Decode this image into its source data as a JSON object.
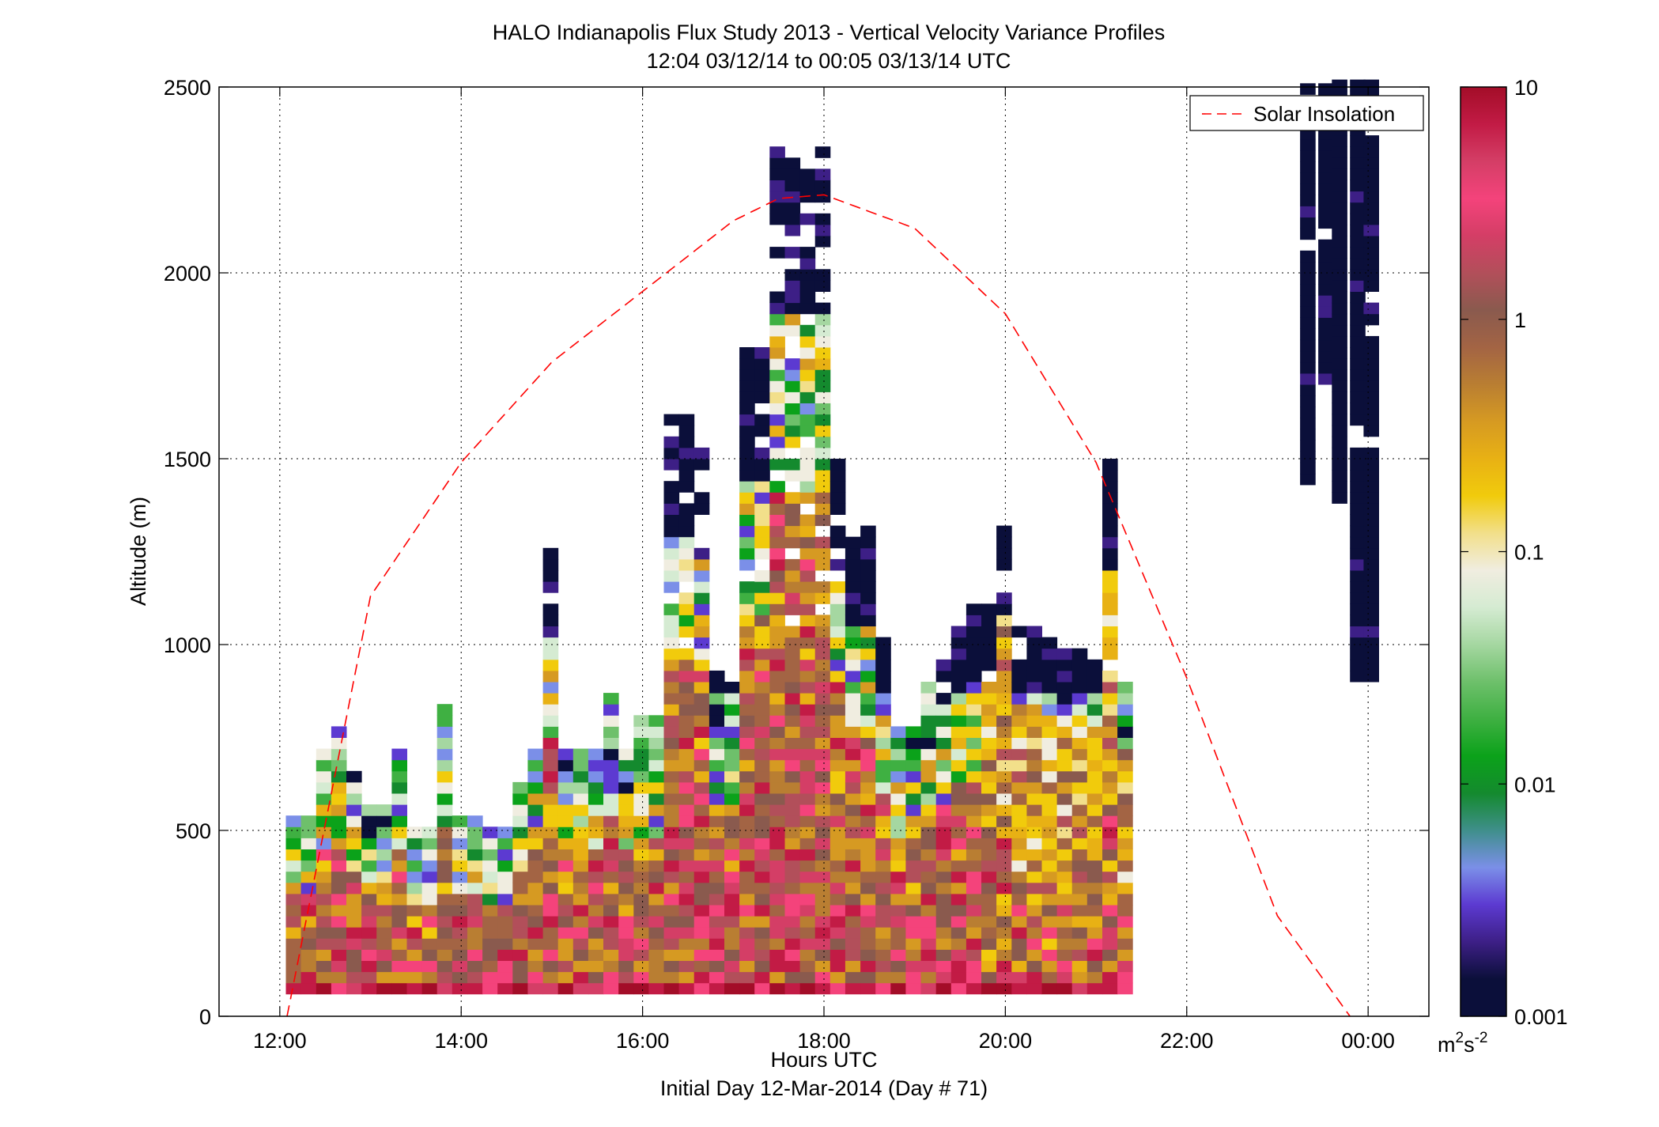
{
  "chart_data": {
    "type": "heatmap",
    "title_line1": "HALO Indianapolis Flux Study 2013 - Vertical Velocity Variance Profiles",
    "title_line2": "12:04 03/12/14 to 00:05 03/13/14  UTC",
    "xlabel": "Hours UTC",
    "xlabel2": "Initial Day 12-Mar-2014 (Day # 71)",
    "ylabel": "Altitude (m)",
    "xlim": [
      11.33,
      24.67
    ],
    "ylim": [
      0,
      2500
    ],
    "x_ticks": [
      12,
      14,
      16,
      18,
      20,
      22,
      24
    ],
    "x_tick_labels": [
      "12:00",
      "14:00",
      "16:00",
      "18:00",
      "20:00",
      "22:00",
      "00:00"
    ],
    "y_ticks": [
      0,
      500,
      1000,
      1500,
      2000,
      2500
    ],
    "y_tick_labels": [
      "0",
      "500",
      "1000",
      "1500",
      "2000",
      "2500"
    ],
    "grid": true,
    "legend": {
      "entries": [
        "Solar Insolation"
      ],
      "placement": "top-right",
      "line_color": "#ff0000",
      "line_style": "dashed"
    },
    "colorbar": {
      "scale": "log",
      "range": [
        0.001,
        10
      ],
      "ticks": [
        0.001,
        0.01,
        0.1,
        1,
        10
      ],
      "tick_labels": [
        "0.001",
        "0.01",
        "0.1",
        "1",
        "10"
      ],
      "unit_label": "m",
      "unit_sup1": "2",
      "unit_mid": "s",
      "unit_sup2": "-2"
    },
    "palette": [
      "#0b0f3a",
      "#3d1f86",
      "#5c3ad1",
      "#7b8fe8",
      "#3f8f8b",
      "#148a2e",
      "#0ba21a",
      "#3fb042",
      "#6ec06b",
      "#a5d7a1",
      "#d5ebd2",
      "#f0ede0",
      "#f2df8a",
      "#f1cb0c",
      "#e8b114",
      "#d69a22",
      "#b97e32",
      "#a36444",
      "#8a5a4e",
      "#b24f5a",
      "#d43e66",
      "#f4437b",
      "#c21b45",
      "#a30d28",
      "#b5b5b5",
      "#7f8ca4"
    ],
    "time_bin_hours": 0.1667,
    "altitude_bin_m": 30,
    "series": [
      {
        "name": "Solar Insolation",
        "x": [
          12.08,
          13,
          14,
          15,
          16,
          17,
          17.5,
          18,
          19,
          20,
          21,
          22,
          23,
          23.8
        ],
        "y": [
          0,
          1130,
          1490,
          1760,
          1950,
          2140,
          2200,
          2210,
          2120,
          1890,
          1490,
          910,
          270,
          0
        ]
      }
    ]
  }
}
